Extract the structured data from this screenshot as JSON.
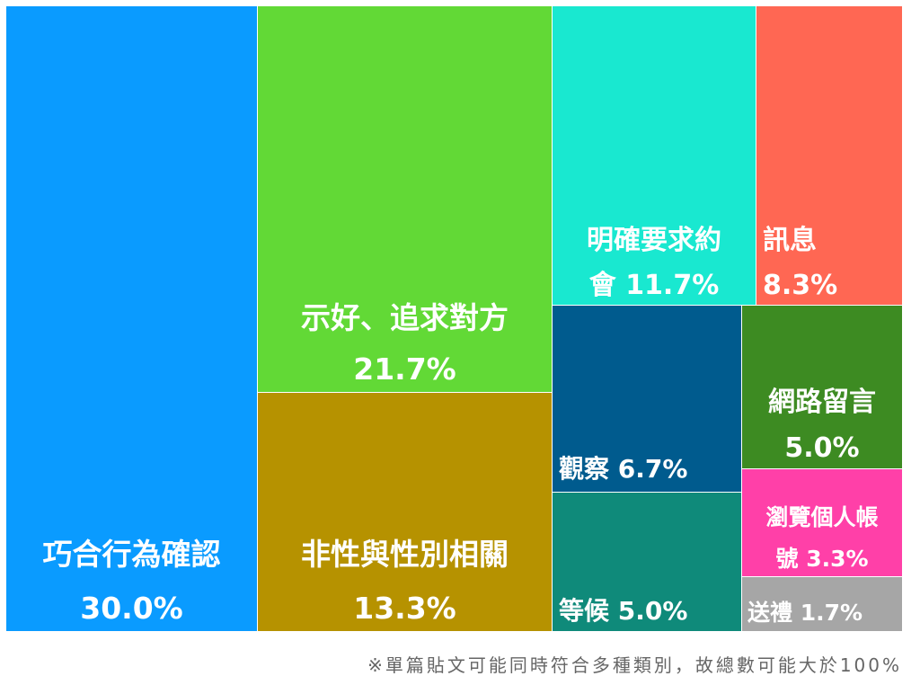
{
  "chart_data": {
    "type": "treemap",
    "unit": "%",
    "items": [
      {
        "label_lines": [
          "巧合行為確認"
        ],
        "value_text": "30.0%",
        "value": 30.0,
        "color": "#0a9bff"
      },
      {
        "label_lines": [
          "示好、追求對方"
        ],
        "value_text": "21.7%",
        "value": 21.7,
        "color": "#62d936"
      },
      {
        "label_lines": [
          "非性與性別相關"
        ],
        "value_text": "13.3%",
        "value": 13.3,
        "color": "#b69200"
      },
      {
        "label_lines": [
          "明確要求約",
          "會"
        ],
        "value_text": "11.7%",
        "value": 11.7,
        "color": "#19e8d0"
      },
      {
        "label_lines": [
          "訊息"
        ],
        "value_text": "8.3%",
        "value": 8.3,
        "color": "#ff6753"
      },
      {
        "label_lines": [
          "觀察"
        ],
        "value_text": "6.7%",
        "value": 6.7,
        "color": "#005b8e"
      },
      {
        "label_lines": [
          "等候"
        ],
        "value_text": "5.0%",
        "value": 5.0,
        "color": "#0f8a7a"
      },
      {
        "label_lines": [
          "網路留言"
        ],
        "value_text": "5.0%",
        "value": 5.0,
        "color": "#3d8b22"
      },
      {
        "label_lines": [
          "瀏覽個人帳",
          "號"
        ],
        "value_text": "3.3%",
        "value": 3.3,
        "color": "#ff40a8"
      },
      {
        "label_lines": [
          "送禮"
        ],
        "value_text": "1.7%",
        "value": 1.7,
        "color": "#a6a6a6"
      }
    ]
  },
  "footnote": "※單篇貼文可能同時符合多種類別，故總數可能大於100%"
}
